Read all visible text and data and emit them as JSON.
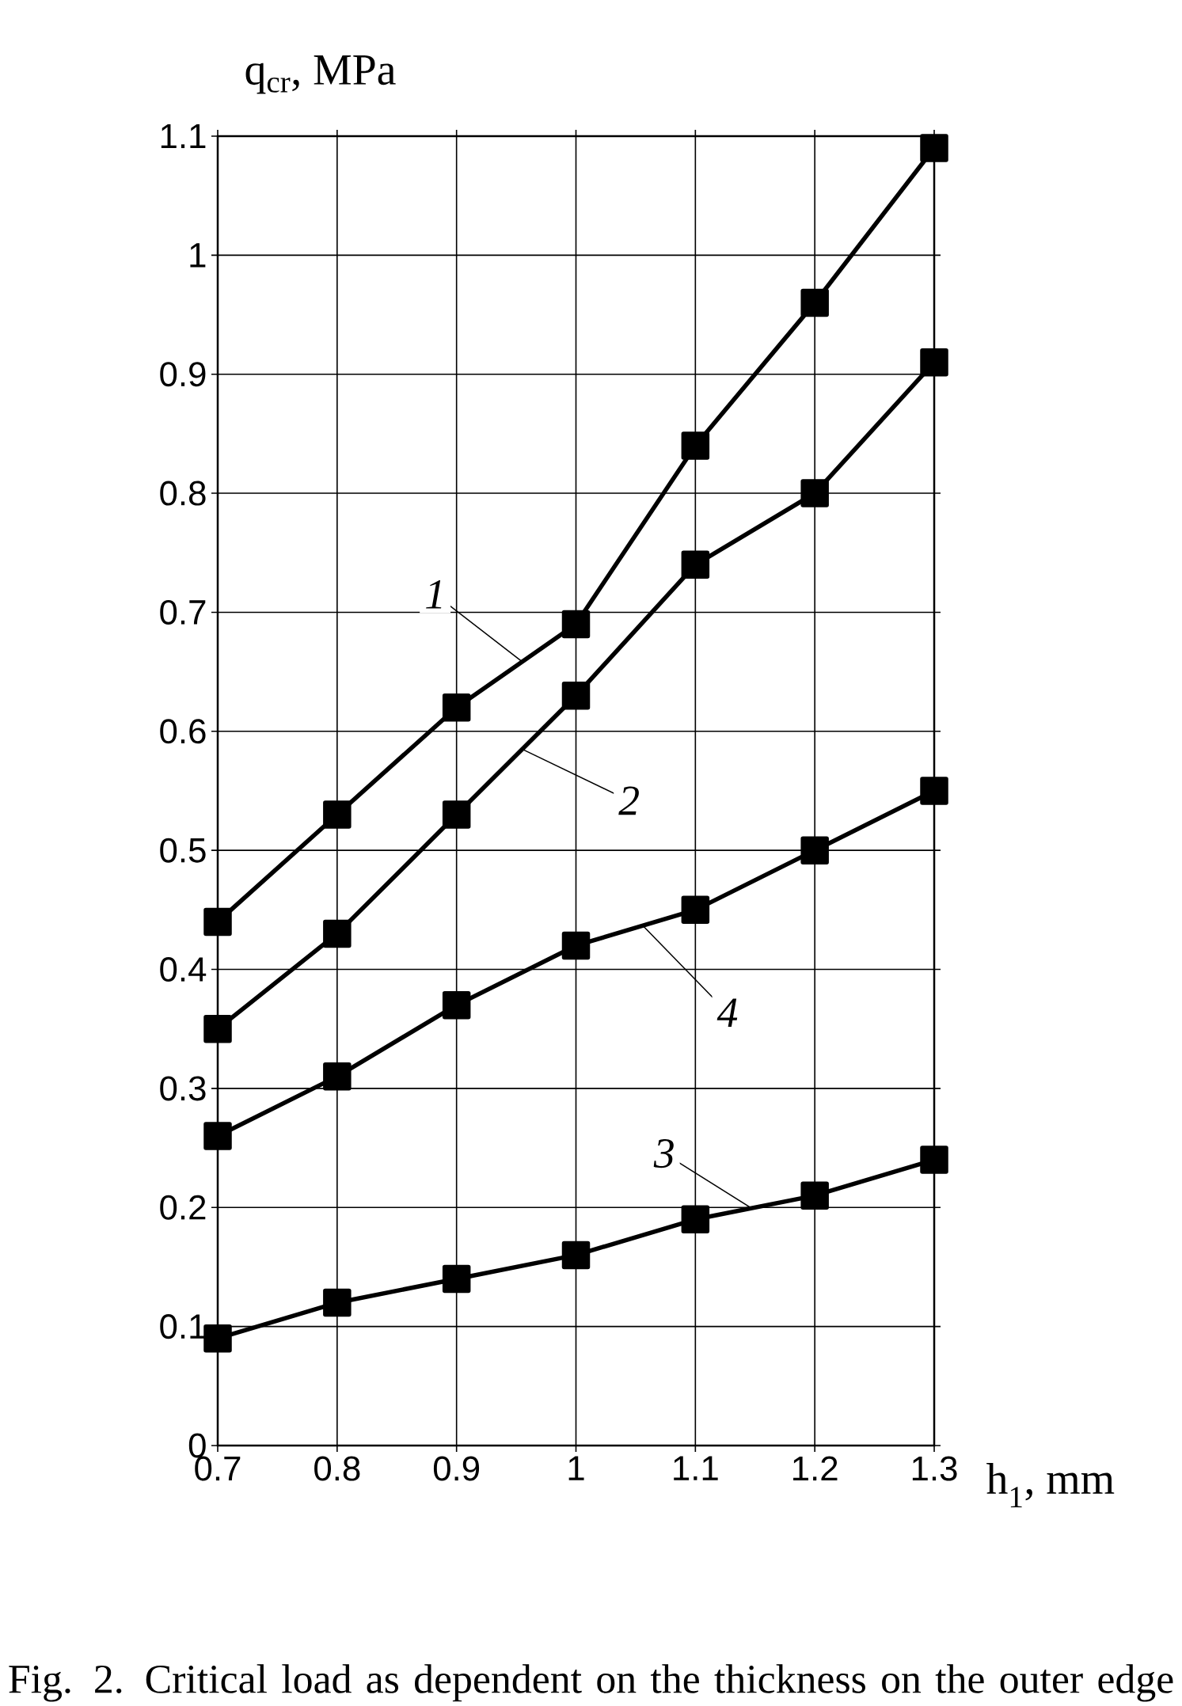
{
  "chart_data": {
    "type": "line",
    "xlabel": "h$_{1}$, mm",
    "ylabel": "q$_{cr}$, MPa",
    "x": [
      0.7,
      0.8,
      0.9,
      1.0,
      1.1,
      1.2,
      1.3
    ],
    "series": [
      {
        "name": "1",
        "color": "#000000",
        "values": [
          0.44,
          0.53,
          0.62,
          0.69,
          0.84,
          0.96,
          1.09
        ]
      },
      {
        "name": "2",
        "color": "#000000",
        "values": [
          0.35,
          0.43,
          0.53,
          0.63,
          0.74,
          0.8,
          0.91
        ]
      },
      {
        "name": "3",
        "color": "#000000",
        "values": [
          0.09,
          0.12,
          0.14,
          0.16,
          0.19,
          0.21,
          0.24
        ]
      },
      {
        "name": "4",
        "color": "#000000",
        "values": [
          0.26,
          0.31,
          0.37,
          0.42,
          0.45,
          0.5,
          0.55
        ]
      }
    ],
    "xlim": [
      0.7,
      1.3
    ],
    "ylim": [
      0,
      1.1
    ],
    "xticks": [
      0.7,
      0.8,
      0.9,
      1,
      1.1,
      1.2,
      1.3
    ],
    "yticks": [
      0,
      0.1,
      0.2,
      0.3,
      0.4,
      0.5,
      0.6,
      0.7,
      0.8,
      0.9,
      1,
      1.1
    ],
    "grid": true,
    "marker": "square",
    "line_style": "solid",
    "annotations": [
      "Fig. 2. Critical load as dependent on the thickness on the outer edge"
    ]
  }
}
